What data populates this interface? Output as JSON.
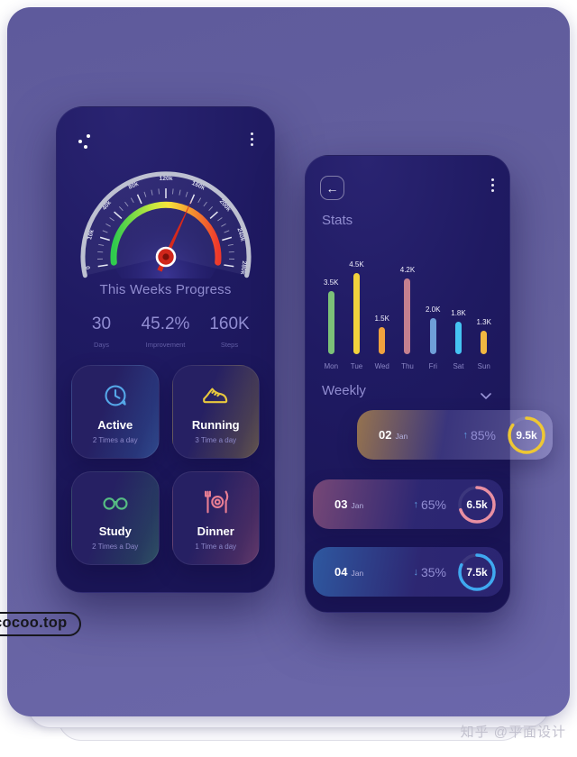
{
  "page": {
    "watermark_left": "cocoo.top",
    "watermark_right": "知乎 @平面设计"
  },
  "colors": {
    "panel_purple": "#615c9f",
    "phone_navy": "#1e1960",
    "accent_text": "#918dd0"
  },
  "left_phone": {
    "progress_title": "This Weeks Progress",
    "stats": [
      {
        "value": "30",
        "label": "Days"
      },
      {
        "value": "45.2%",
        "label": "Improvement"
      },
      {
        "value": "160K",
        "label": "Steps"
      }
    ],
    "cards": [
      {
        "name": "Active",
        "subtitle": "2 Times a day",
        "icon": "clock-icon",
        "accent": "#55a7e8"
      },
      {
        "name": "Running",
        "subtitle": "3 Time a day",
        "icon": "shoe-icon",
        "accent": "#e9c93d"
      },
      {
        "name": "Study",
        "subtitle": "2 Times a Day",
        "icon": "glasses-icon",
        "accent": "#56bd83"
      },
      {
        "name": "Dinner",
        "subtitle": "1 Time a day",
        "icon": "cutlery-icon",
        "accent": "#e87e93"
      }
    ]
  },
  "right_phone": {
    "back_glyph": "←",
    "title": "Stats",
    "weekly_title": "Weekly",
    "weekly_rows": [
      {
        "day": "02",
        "month": "Jan",
        "arrow": "↑",
        "percent": "85%",
        "value": "9.5k",
        "ring_color": "#eec733",
        "ring_fill": 85,
        "glow": "#dfaa45",
        "overflow": true
      },
      {
        "day": "03",
        "month": "Jan",
        "arrow": "↑",
        "percent": "65%",
        "value": "6.5k",
        "ring_color": "#e98fa2",
        "ring_fill": 70,
        "glow": "#c06f8d",
        "overflow": false
      },
      {
        "day": "04",
        "month": "Jan",
        "arrow": "↓",
        "percent": "35%",
        "value": "7.5k",
        "ring_color": "#3fa9f0",
        "ring_fill": 82,
        "glow": "#3f8fdc",
        "overflow": false
      }
    ]
  },
  "chart_data": [
    {
      "type": "gauge",
      "title": "This Weeks Progress",
      "min": 0,
      "max": 280000,
      "tick_labels": [
        "0",
        "10k",
        "40k",
        "80k",
        "120k",
        "160k",
        "200k",
        "240k",
        "280k"
      ],
      "needle_value": 160000,
      "needle_tick_index": 5,
      "arc_colors": [
        "#2ecb4e",
        "#c8e93e",
        "#f7e43c",
        "#f59d31",
        "#ee382b"
      ],
      "outer_arc_color": "#c6c9d6"
    },
    {
      "type": "bar",
      "title": "Stats",
      "categories": [
        "Mon",
        "Tue",
        "Wed",
        "Thu",
        "Fri",
        "Sat",
        "Sun"
      ],
      "values": [
        3500,
        4500,
        1500,
        4200,
        2000,
        1800,
        1300
      ],
      "value_labels": [
        "3.5K",
        "4.5K",
        "1.5K",
        "4.2K",
        "2.0K",
        "1.8K",
        "1.3K"
      ],
      "bar_colors": [
        "#7cc178",
        "#f2d23c",
        "#f0a23e",
        "#c4808f",
        "#6f9fd8",
        "#45c3f2",
        "#f2b741"
      ],
      "ylim": [
        0,
        4500
      ],
      "xlabel": "",
      "ylabel": ""
    }
  ]
}
